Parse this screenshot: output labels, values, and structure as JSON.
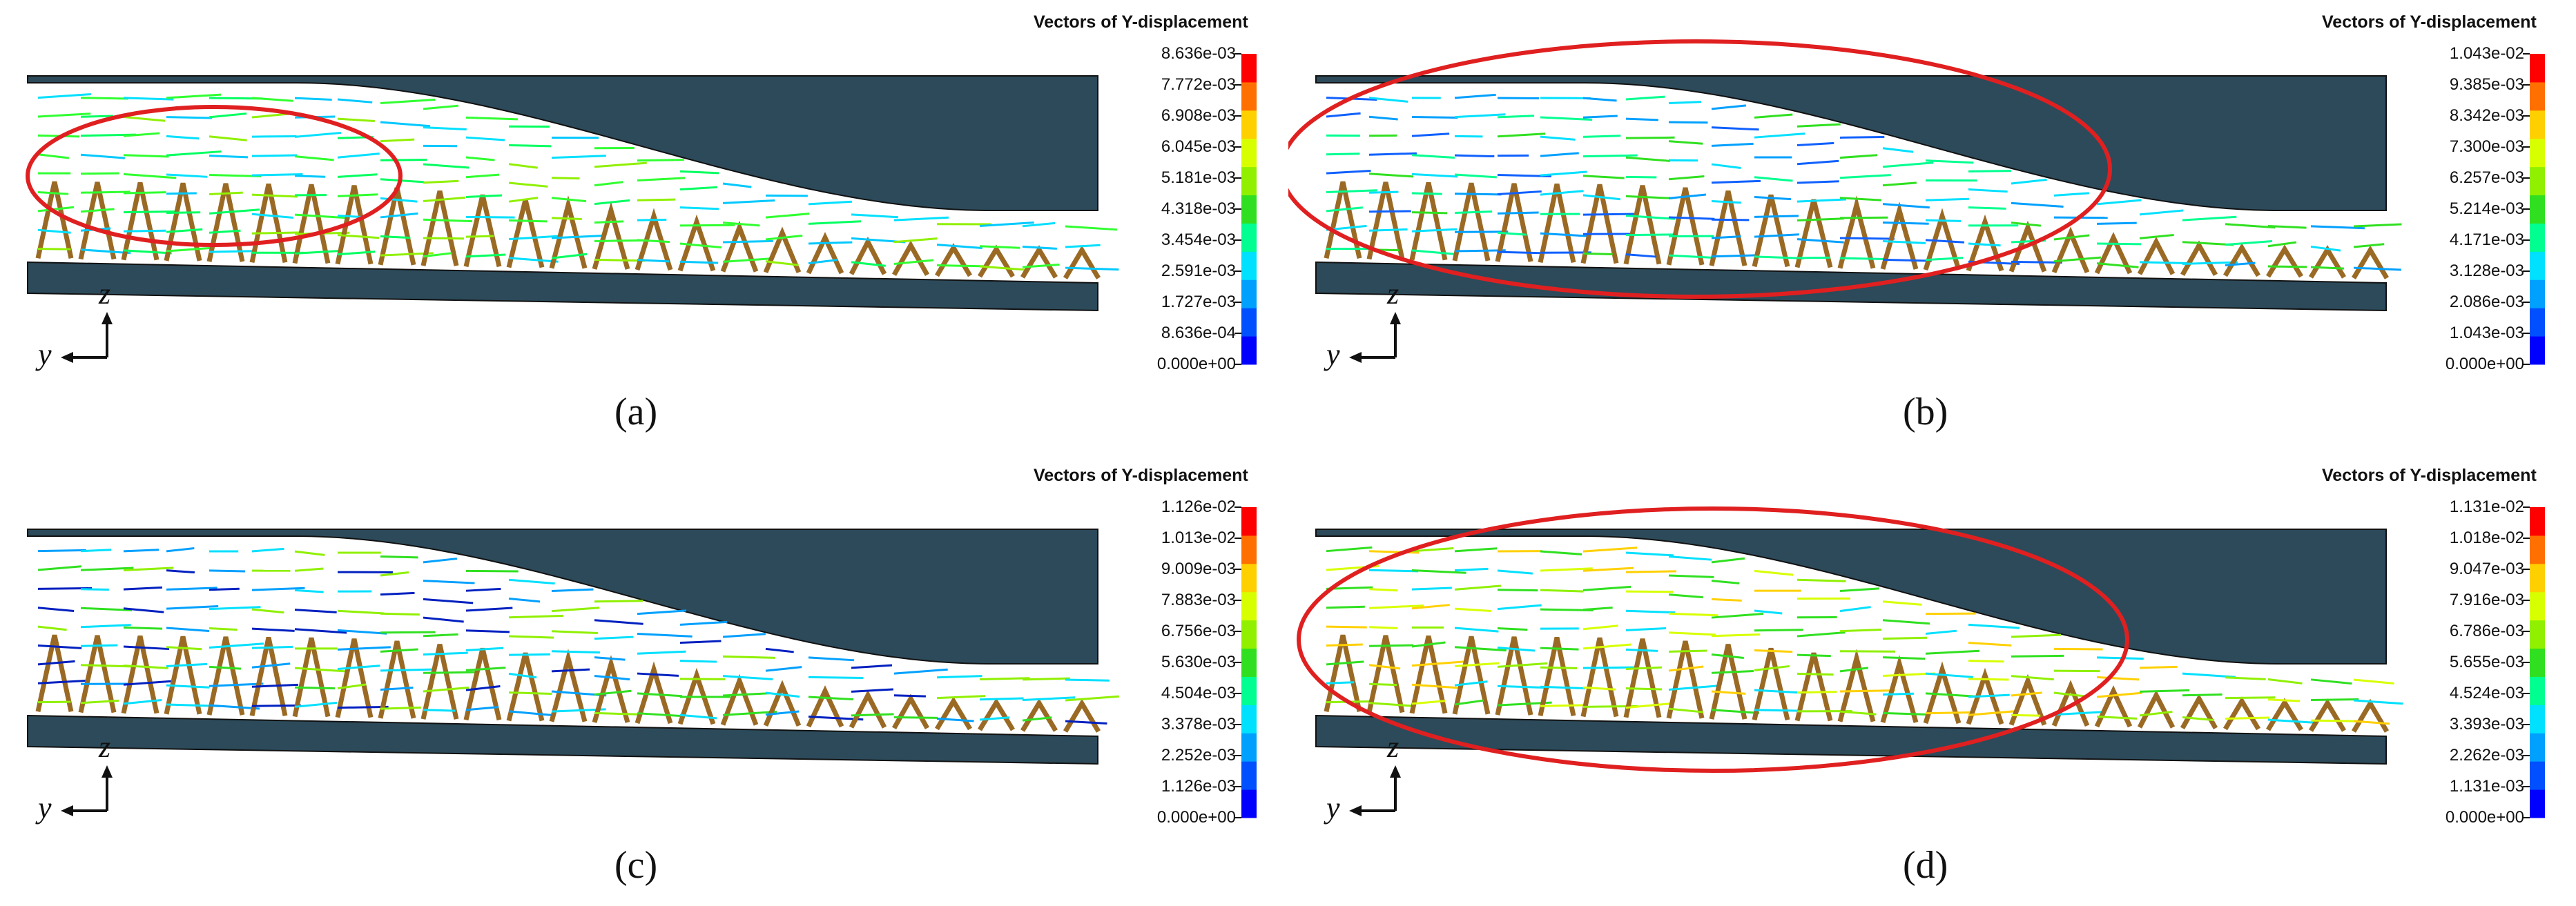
{
  "colors": {
    "wall": "#2c4a5a",
    "core": "#9a6a25",
    "ellipse": "#e02020",
    "scale": [
      "#0000ff",
      "#0050ff",
      "#00a0ff",
      "#00e0ff",
      "#00ff90",
      "#30e020",
      "#90f000",
      "#d8ff00",
      "#ffd000",
      "#ff7000",
      "#ff0000"
    ]
  },
  "icons": [
    "axis-triad-icon"
  ],
  "panels": [
    {
      "id": "a",
      "legend_title": "Vectors of Y-displacement",
      "ticks": [
        "8.636e-03",
        "7.772e-03",
        "6.908e-03",
        "6.045e-03",
        "5.181e-03",
        "4.318e-03",
        "3.454e-03",
        "2.591e-03",
        "1.727e-03",
        "8.636e-04",
        "0.000e+00"
      ],
      "caption": "(a)",
      "axis_z": "z",
      "axis_y": "y",
      "highlight": true,
      "dominant_colors": [
        "#00ff60",
        "#30ff30",
        "#90f000",
        "#00c8ff",
        "#00e0ff"
      ]
    },
    {
      "id": "b",
      "legend_title": "Vectors of Y-displacement",
      "ticks": [
        "1.043e-02",
        "9.385e-03",
        "8.342e-03",
        "7.300e-03",
        "6.257e-03",
        "5.214e-03",
        "4.171e-03",
        "3.128e-03",
        "2.086e-03",
        "1.043e-03",
        "0.000e+00"
      ],
      "caption": "(b)",
      "axis_z": "z",
      "axis_y": "y",
      "highlight": true,
      "dominant_colors": [
        "#1060ff",
        "#00a0ff",
        "#00e0ff",
        "#00ff90",
        "#30e020"
      ]
    },
    {
      "id": "c",
      "legend_title": "Vectors of Y-displacement",
      "ticks": [
        "1.126e-02",
        "1.013e-02",
        "9.009e-03",
        "7.883e-03",
        "6.756e-03",
        "5.630e-03",
        "4.504e-03",
        "3.378e-03",
        "2.252e-03",
        "1.126e-03",
        "0.000e+00"
      ],
      "caption": "(c)",
      "axis_z": "z",
      "axis_y": "y",
      "highlight": false,
      "dominant_colors": [
        "#0020c0",
        "#00a0ff",
        "#00e0ff",
        "#30e020",
        "#90f000"
      ]
    },
    {
      "id": "d",
      "legend_title": "Vectors of Y-displacement",
      "ticks": [
        "1.131e-02",
        "1.018e-02",
        "9.047e-03",
        "7.916e-03",
        "6.786e-03",
        "5.655e-03",
        "4.524e-03",
        "3.393e-03",
        "2.262e-03",
        "1.131e-03",
        "0.000e+00"
      ],
      "caption": "(d)",
      "axis_z": "z",
      "axis_y": "y",
      "highlight": true,
      "dominant_colors": [
        "#90f000",
        "#d8ff00",
        "#30e020",
        "#ffd000",
        "#00e0ff"
      ]
    }
  ]
}
